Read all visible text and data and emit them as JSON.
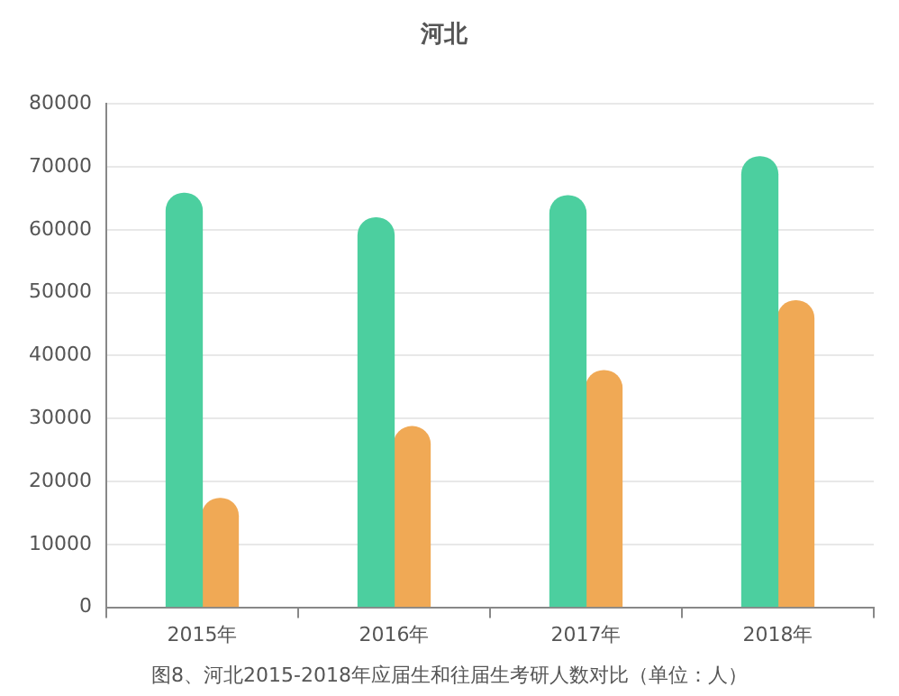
{
  "chart_data": {
    "type": "bar",
    "title": "河北",
    "categories": [
      "2015年",
      "2016年",
      "2017年",
      "2018年"
    ],
    "series": [
      {
        "color": "#4ccf9f",
        "values": [
          65800,
          61900,
          65400,
          71600
        ]
      },
      {
        "color": "#f0a955",
        "values": [
          17300,
          28700,
          37600,
          48700
        ]
      }
    ],
    "ylim": [
      0,
      80000
    ],
    "yticks": [
      0,
      10000,
      20000,
      30000,
      40000,
      50000,
      60000,
      70000,
      80000
    ],
    "grid": "y",
    "legend": false,
    "annotations": [
      "图8、河北2015-2018年应届生和往届生考研人数对比（单位：人）"
    ]
  }
}
